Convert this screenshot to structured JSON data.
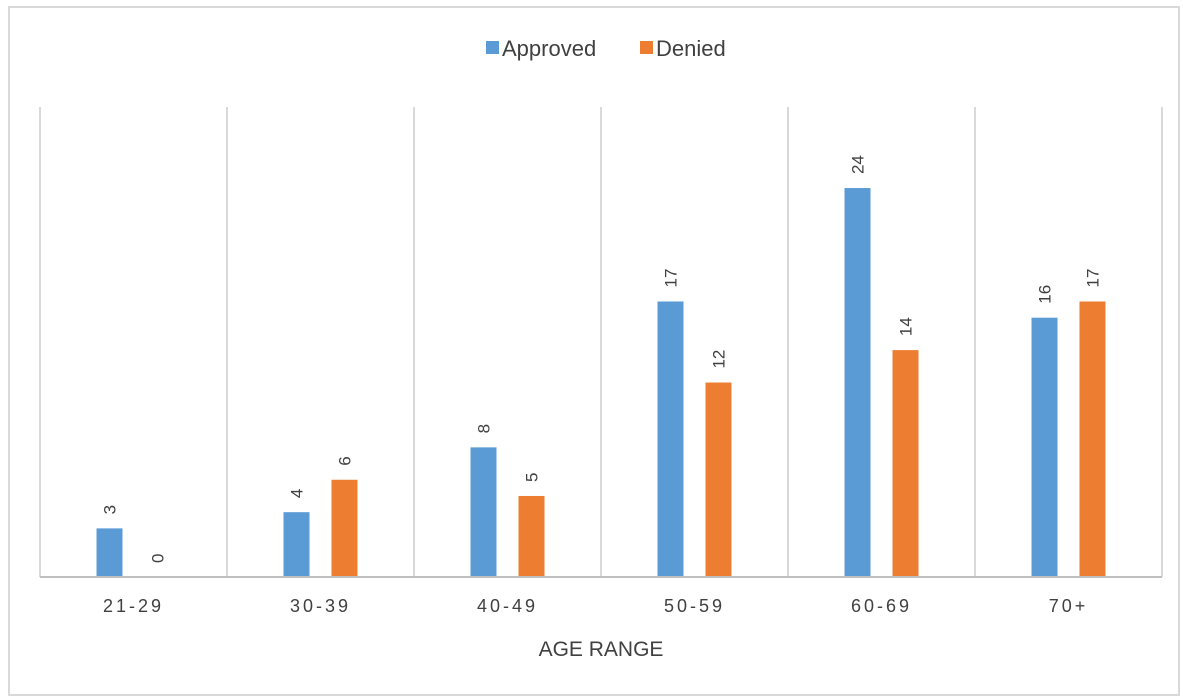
{
  "chart_data": {
    "type": "bar",
    "title": "",
    "xlabel": "AGE RANGE",
    "ylabel": "",
    "categories": [
      "21-29",
      "30-39",
      "40-49",
      "50-59",
      "60-69",
      "70+"
    ],
    "series": [
      {
        "name": "Approved",
        "color": "#5b9bd5",
        "values": [
          3,
          4,
          8,
          17,
          24,
          16
        ]
      },
      {
        "name": "Denied",
        "color": "#ed7d31",
        "values": [
          0,
          6,
          5,
          12,
          14,
          17
        ]
      }
    ],
    "ylim": [
      0,
      29
    ],
    "grid": "vertical category separators",
    "legend": "top-center",
    "data_labels": "rotated, above bars"
  }
}
